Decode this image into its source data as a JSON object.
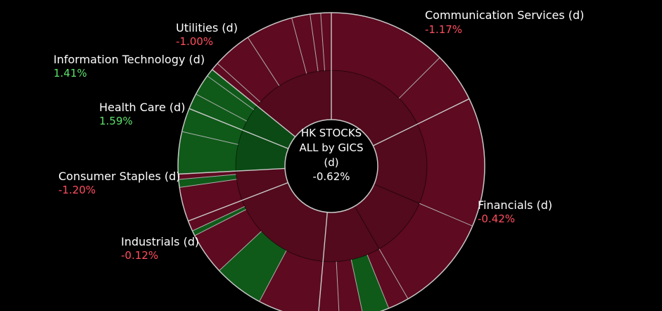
{
  "chart_data": {
    "type": "sunburst",
    "title": "HK STOCKS ALL by GICS (d)",
    "center": {
      "line1": "HK STOCKS",
      "line2": "ALL by GICS",
      "line3": "(d)",
      "value": "-0.62%"
    },
    "colors": {
      "background": "#000000",
      "negative_fill": "#5e0a20",
      "negative_fill_inner": "#520a1c",
      "positive_fill": "#0f5a19",
      "positive_fill_inner": "#0b4a14",
      "positive_text": "#5ce06b",
      "negative_text": "#ff4d5e",
      "separator": "#c8c8c8"
    },
    "sectors": [
      {
        "name": "Communication Services (d)",
        "change": "-1.17%",
        "change_value": -1.17,
        "share_deg": 64
      },
      {
        "name": "Financials (d)",
        "change": "-0.42%",
        "change_value": -0.42,
        "share_deg": 121
      },
      {
        "name": "Industrials (d)",
        "change": "-0.12%",
        "change_value": -0.12,
        "share_deg": 64
      },
      {
        "name": "Consumer Staples (d)",
        "change": "-1.20%",
        "change_value": -1.2,
        "share_deg": 18
      },
      {
        "name": "Health Care (d)",
        "change": "1.59%",
        "change_value": 1.59,
        "share_deg": 25
      },
      {
        "name": "Information Technology (d)",
        "change": "1.41%",
        "change_value": 1.41,
        "share_deg": 17
      },
      {
        "name": "Utilities (d)",
        "change": "-1.00%",
        "change_value": -1.0,
        "share_deg": 51
      }
    ],
    "segments": [
      {
        "sector": 0,
        "level": 2,
        "from": 0,
        "to": 45,
        "tone": "neg"
      },
      {
        "sector": 0,
        "level": 2,
        "from": 45,
        "to": 64,
        "tone": "neg"
      },
      {
        "sector": 1,
        "level": 1,
        "from": 64,
        "to": 113,
        "tone": "neg"
      },
      {
        "sector": 1,
        "level": 2,
        "from": 64,
        "to": 113,
        "tone": "neg"
      },
      {
        "sector": 1,
        "level": 1,
        "from": 113,
        "to": 150,
        "tone": "neg"
      },
      {
        "sector": 1,
        "level": 2,
        "from": 113,
        "to": 150,
        "tone": "neg"
      },
      {
        "sector": 1,
        "level": 1,
        "from": 150,
        "to": 185,
        "tone": "neg"
      },
      {
        "sector": 1,
        "level": 2,
        "from": 150,
        "to": 158,
        "tone": "neg"
      },
      {
        "sector": 1,
        "level": 2,
        "from": 158,
        "to": 168,
        "tone": "pos"
      },
      {
        "sector": 1,
        "level": 2,
        "from": 168,
        "to": 177,
        "tone": "neg"
      },
      {
        "sector": 1,
        "level": 2,
        "from": 177,
        "to": 185,
        "tone": "neg"
      },
      {
        "sector": 2,
        "level": 1,
        "from": 185,
        "to": 249,
        "tone": "neg"
      },
      {
        "sector": 2,
        "level": 2,
        "from": 185,
        "to": 208,
        "tone": "neg"
      },
      {
        "sector": 2,
        "level": 2,
        "from": 208,
        "to": 227,
        "tone": "pos"
      },
      {
        "sector": 2,
        "level": 2,
        "from": 227,
        "to": 243,
        "tone": "neg"
      },
      {
        "sector": 2,
        "level": 2,
        "from": 243,
        "to": 245,
        "tone": "pos"
      },
      {
        "sector": 2,
        "level": 2,
        "from": 245,
        "to": 249,
        "tone": "neg"
      },
      {
        "sector": 3,
        "level": 1,
        "from": 249,
        "to": 267,
        "tone": "neg"
      },
      {
        "sector": 3,
        "level": 2,
        "from": 249,
        "to": 262,
        "tone": "neg"
      },
      {
        "sector": 3,
        "level": 2,
        "from": 262,
        "to": 265,
        "tone": "pos"
      },
      {
        "sector": 3,
        "level": 2,
        "from": 265,
        "to": 267,
        "tone": "neg"
      },
      {
        "sector": 4,
        "level": 1,
        "from": 267,
        "to": 292,
        "tone": "pos"
      },
      {
        "sector": 4,
        "level": 2,
        "from": 267,
        "to": 283,
        "tone": "pos"
      },
      {
        "sector": 4,
        "level": 2,
        "from": 283,
        "to": 292,
        "tone": "pos"
      },
      {
        "sector": 5,
        "level": 1,
        "from": 292,
        "to": 309,
        "tone": "pos"
      },
      {
        "sector": 5,
        "level": 2,
        "from": 292,
        "to": 298,
        "tone": "pos"
      },
      {
        "sector": 5,
        "level": 2,
        "from": 298,
        "to": 306,
        "tone": "pos"
      },
      {
        "sector": 5,
        "level": 2,
        "from": 306,
        "to": 309,
        "tone": "pos"
      },
      {
        "sector": 6,
        "level": 1,
        "from": 309,
        "to": 360,
        "tone": "neg"
      },
      {
        "sector": 6,
        "level": 2,
        "from": 309,
        "to": 312,
        "tone": "neg"
      },
      {
        "sector": 6,
        "level": 2,
        "from": 312,
        "to": 327,
        "tone": "neg"
      },
      {
        "sector": 6,
        "level": 2,
        "from": 327,
        "to": 345,
        "tone": "neg"
      },
      {
        "sector": 6,
        "level": 2,
        "from": 345,
        "to": 352,
        "tone": "neg"
      },
      {
        "sector": 6,
        "level": 2,
        "from": 352,
        "to": 356,
        "tone": "neg"
      },
      {
        "sector": 6,
        "level": 2,
        "from": 356,
        "to": 360,
        "tone": "neg"
      },
      {
        "sector": 0,
        "level": 1,
        "from": 0,
        "to": 64,
        "tone": "neg"
      }
    ]
  }
}
